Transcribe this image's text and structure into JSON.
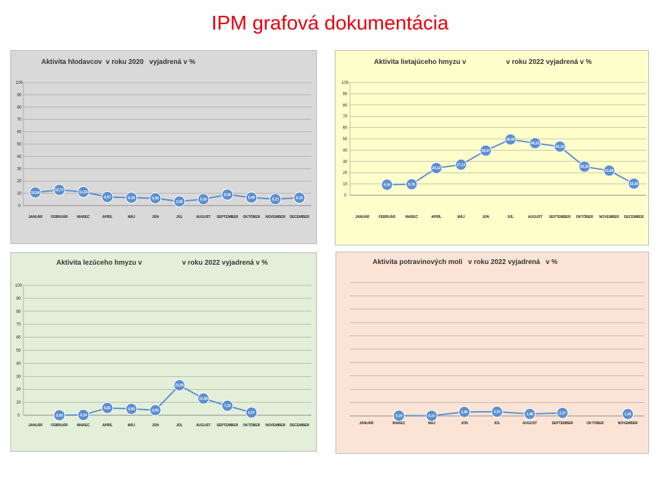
{
  "page": {
    "title": "IPM grafová dokumentácia"
  },
  "colors": {
    "title": "#e8000d",
    "series": "#5b8fcf",
    "marker_stroke": "#ffffff",
    "grid": "#8a8a8a",
    "label_text": "#ffffff"
  },
  "chart_data": [
    {
      "type": "line",
      "background": "#d9d9d9",
      "title": "Aktivita hlodavcov  v roku 2020   vyjadrená v %",
      "categories": [
        "JANUÁR",
        "FEBRUÁR",
        "MAREC",
        "APRÍL",
        "MÁJ",
        "JÚN",
        "JÚL",
        "AUGUST",
        "SEPTEMBER",
        "OKTÓBER",
        "NOVEMBER",
        "DECEMBER"
      ],
      "series": [
        {
          "values": [
            10.64,
            12.77,
            11.03,
            6.97,
            6.38,
            5.96,
            3.35,
            5.16,
            8.9,
            6.49,
            5.21,
            6.33
          ],
          "labels": [
            "10,64",
            "12,77",
            "11,03",
            "6,97",
            "6,38",
            "5,96",
            "3,35",
            "5,16",
            "8,90",
            "6,49",
            "5,21",
            "6,33"
          ]
        }
      ],
      "yticks": [
        0,
        10,
        20,
        30,
        40,
        50,
        60,
        70,
        80,
        90,
        100
      ],
      "ylim": [
        0,
        100
      ],
      "grid": true,
      "show_y_axis": true
    },
    {
      "type": "line",
      "background": "#ffffcc",
      "title": "Aktivita lietajúceho hmyzu v                     v roku 2022 vyjadrená v %",
      "categories": [
        "JANUÁR",
        "FEBRUÁR",
        "MAREC",
        "APRÍL",
        "MÁJ",
        "JÚN",
        "JÚL",
        "AUGUST",
        "SEPTEMBER",
        "OKTÓBER",
        "NOVEMBER",
        "DECEMBER"
      ],
      "series": [
        {
          "values": [
            null,
            9.36,
            9.76,
            24.12,
            27.13,
            39.57,
            49.49,
            46.22,
            43.16,
            25.35,
            21.86,
            10.3
          ],
          "labels": [
            "",
            "9,36",
            "9,76",
            "24,12",
            "27,13",
            "39,57",
            "49,49",
            "46,22",
            "43,16",
            "25,35",
            "21,86",
            "10,30"
          ]
        }
      ],
      "yticks": [
        0,
        10,
        20,
        30,
        40,
        50,
        60,
        70,
        80,
        90,
        100
      ],
      "ylim": [
        0,
        100
      ],
      "grid": true,
      "show_y_axis": true
    },
    {
      "type": "line",
      "background": "#e3efd9",
      "title": "Aktivita lezúceho hmyzu v                     v roku 2022 vyjadrená v %",
      "categories": [
        "JANUÁR",
        "FEBRUÁR",
        "MAREC",
        "APRÍL",
        "MÁJ",
        "JÚN",
        "JÚL",
        "AUGUST",
        "SEPTEMBER",
        "OKTÓBER",
        "NOVEMBER",
        "DECEMBER"
      ],
      "series": [
        {
          "values": [
            null,
            0.0,
            0.24,
            5.61,
            4.88,
            3.9,
            23.05,
            12.88,
            7.32,
            2.07,
            null,
            null
          ],
          "labels": [
            "",
            "0,00",
            "0,24",
            "5,61",
            "4,88",
            "3,90",
            "23,05",
            "12,88",
            "7,32",
            "2,07",
            "",
            ""
          ]
        }
      ],
      "yticks": [
        0,
        10,
        20,
        30,
        40,
        50,
        60,
        70,
        80,
        90,
        100
      ],
      "ylim": [
        0,
        100
      ],
      "grid": true,
      "show_y_axis": true
    },
    {
      "type": "line",
      "background": "#fbe4d6",
      "title": "Aktivita potravinových molí   v roku 2022 vyjadrená   v %",
      "categories": [
        "JANUÁR",
        "MAREC",
        "MÁJ",
        "JÚN",
        "JÚL",
        "AUGUST",
        "SEPTEMBER",
        "OKTÓBER",
        "NOVEMBER"
      ],
      "series": [
        {
          "values": [
            null,
            0.19,
            0.15,
            2.96,
            3.15,
            1.48,
            2.27,
            null,
            1.42
          ],
          "labels": [
            "",
            "0,19",
            "0,15",
            "2,96",
            "3,15",
            "1,48",
            "2,27",
            "",
            "1,42"
          ]
        }
      ],
      "yticks": [],
      "ylim": [
        0,
        100
      ],
      "grid": true,
      "show_y_axis": false
    }
  ]
}
